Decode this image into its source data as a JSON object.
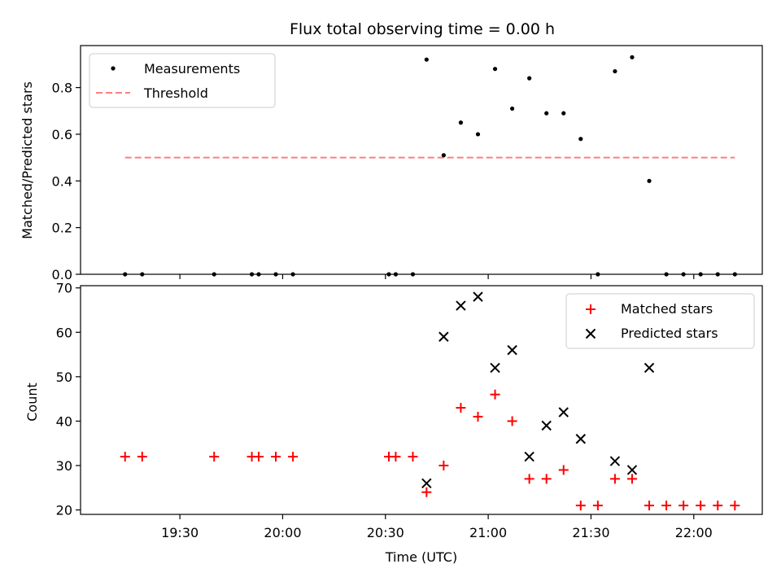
{
  "title": "Flux total observing time = 0.00 h",
  "colors": {
    "measurement": "#000000",
    "threshold": "#ff7f7f",
    "matched": "#ff0000",
    "predicted": "#000000"
  },
  "top_panel": {
    "ylabel": "Matched/Predicted stars",
    "ylim": [
      0,
      0.98
    ],
    "yticks": [
      0.0,
      0.2,
      0.4,
      0.6,
      0.8
    ],
    "ytick_labels": [
      "0.0",
      "0.2",
      "0.4",
      "0.6",
      "0.8"
    ],
    "legend": {
      "placement": "top-left",
      "measurements_label": "Measurements",
      "threshold_label": "Threshold"
    }
  },
  "bottom_panel": {
    "ylabel": "Count",
    "xlabel": "Time (UTC)",
    "ylim": [
      19,
      70.5
    ],
    "yticks": [
      20,
      30,
      40,
      50,
      60,
      70
    ],
    "ytick_labels": [
      "20",
      "30",
      "40",
      "50",
      "60",
      "70"
    ],
    "legend": {
      "placement": "top-right",
      "matched_label": "Matched stars",
      "predicted_label": "Predicted stars"
    }
  },
  "x_axis": {
    "xlim_minutes": [
      1141,
      1340
    ],
    "ticks_minutes": [
      1170,
      1200,
      1230,
      1260,
      1290,
      1320
    ],
    "tick_labels": [
      "19:30",
      "20:00",
      "20:30",
      "21:00",
      "21:30",
      "22:00"
    ]
  },
  "chart_data": [
    {
      "type": "scatter",
      "title": "Flux total observing time = 0.00 h",
      "xlabel": "",
      "ylabel": "Matched/Predicted stars",
      "series": [
        {
          "name": "Measurements",
          "x": [
            "19:14",
            "19:19",
            "19:40",
            "19:51",
            "19:53",
            "19:58",
            "20:03",
            "20:31",
            "20:33",
            "20:38",
            "20:42",
            "20:47",
            "20:52",
            "20:57",
            "21:02",
            "21:07",
            "21:12",
            "21:17",
            "21:22",
            "21:27",
            "21:32",
            "21:37",
            "21:42",
            "21:47",
            "21:52",
            "21:57",
            "22:02",
            "22:07",
            "22:12"
          ],
          "y": [
            0,
            0,
            0,
            0,
            0,
            0,
            0,
            0,
            0,
            0,
            0.92,
            0.51,
            0.65,
            0.6,
            0.88,
            0.71,
            0.84,
            0.69,
            0.69,
            0.58,
            0,
            0.87,
            0.93,
            0.4,
            0,
            0,
            0,
            0,
            0
          ]
        },
        {
          "name": "Threshold",
          "x": [
            "19:14",
            "22:12"
          ],
          "y": [
            0.5,
            0.5
          ]
        }
      ]
    },
    {
      "type": "scatter",
      "xlabel": "Time (UTC)",
      "ylabel": "Count",
      "series": [
        {
          "name": "Matched stars",
          "x": [
            "19:14",
            "19:19",
            "19:40",
            "19:51",
            "19:53",
            "19:58",
            "20:03",
            "20:31",
            "20:33",
            "20:38",
            "20:42",
            "20:47",
            "20:52",
            "20:57",
            "21:02",
            "21:07",
            "21:12",
            "21:17",
            "21:22",
            "21:27",
            "21:32",
            "21:37",
            "21:42",
            "21:47",
            "21:52",
            "21:57",
            "22:02",
            "22:07",
            "22:12"
          ],
          "y": [
            32,
            32,
            32,
            32,
            32,
            32,
            32,
            32,
            32,
            32,
            24,
            30,
            43,
            41,
            46,
            40,
            27,
            27,
            29,
            21,
            21,
            27,
            27,
            21,
            21,
            21,
            21,
            21,
            21
          ]
        },
        {
          "name": "Predicted stars",
          "x": [
            "20:42",
            "20:47",
            "20:52",
            "20:57",
            "21:02",
            "21:07",
            "21:12",
            "21:17",
            "21:22",
            "21:27",
            "21:37",
            "21:42",
            "21:47"
          ],
          "y": [
            26,
            59,
            66,
            68,
            52,
            56,
            32,
            39,
            42,
            36,
            31,
            29,
            52
          ]
        }
      ]
    }
  ]
}
